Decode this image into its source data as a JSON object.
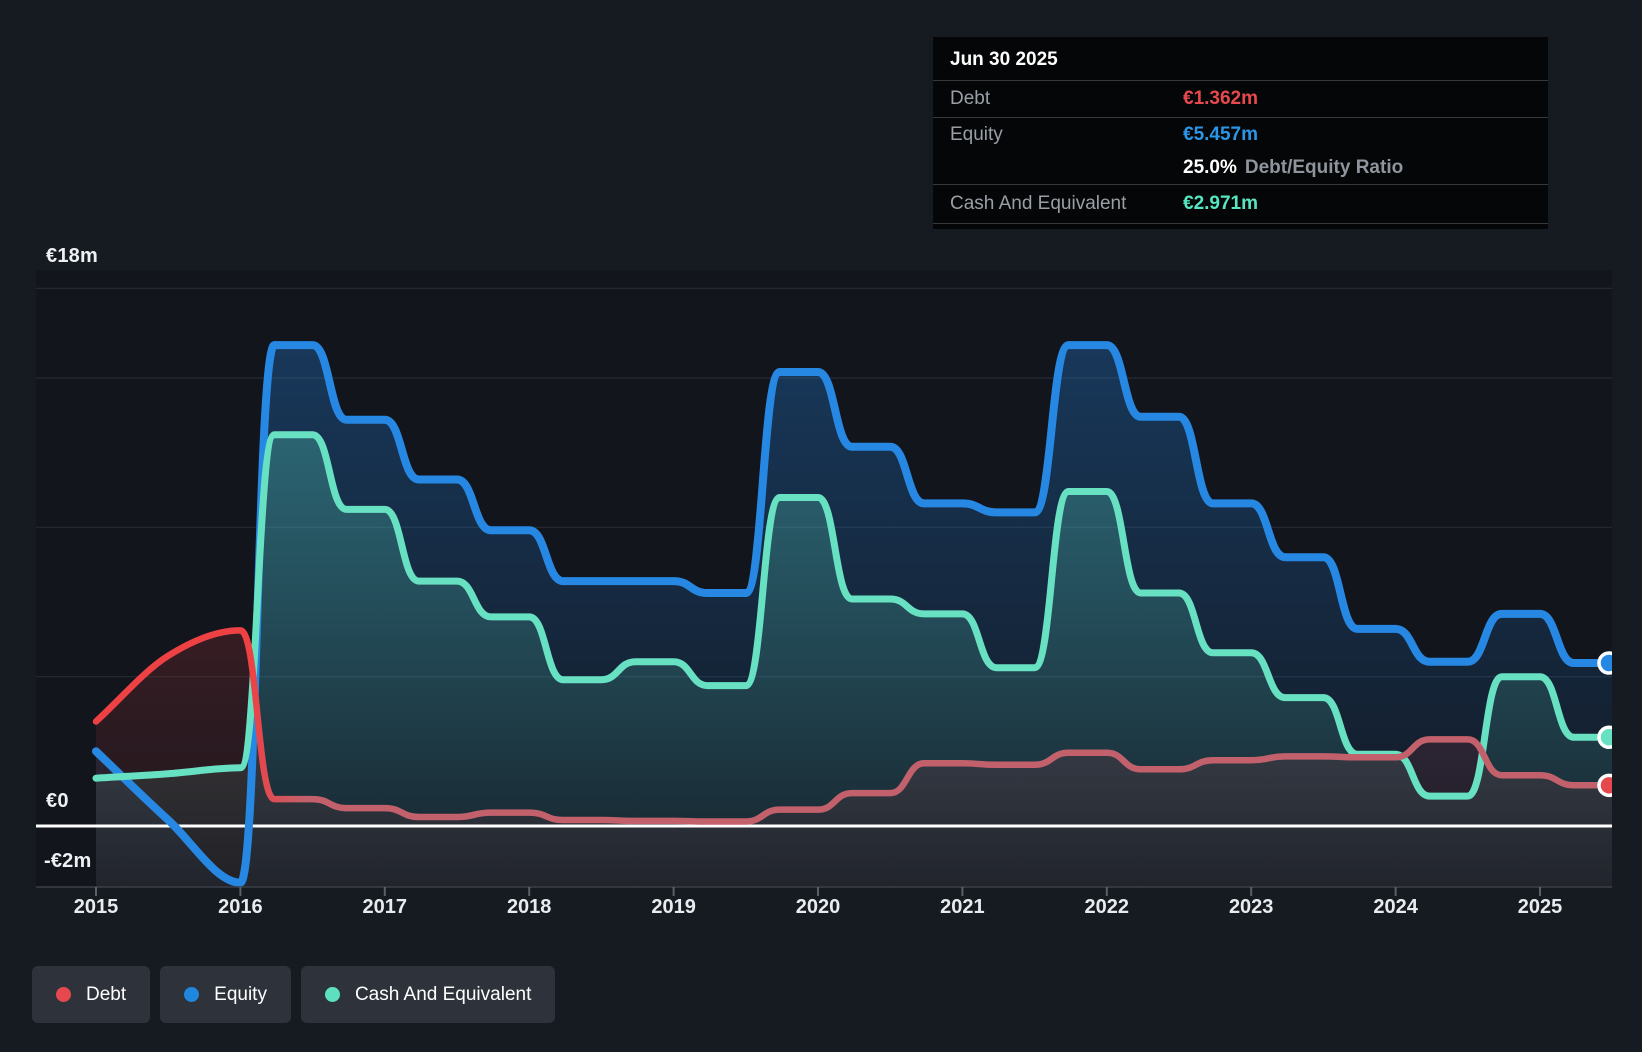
{
  "page": {
    "background": "#161a21",
    "plot_background": "#12151c"
  },
  "tooltip": {
    "date": "Jun 30 2025",
    "rows": [
      {
        "label": "Debt",
        "value": "€1.362m",
        "color": "#e8494d"
      },
      {
        "label": "Equity",
        "value": "€5.457m",
        "color": "#2b96e8"
      },
      {
        "label": "Cash And Equivalent",
        "value": "€2.971m",
        "color": "#55e6c2"
      }
    ],
    "ratio_value": "25.0%",
    "ratio_label": "Debt/Equity Ratio"
  },
  "legend": {
    "items": [
      {
        "label": "Debt",
        "color": "#e5484d"
      },
      {
        "label": "Equity",
        "color": "#2186dd"
      },
      {
        "label": "Cash And Equivalent",
        "color": "#5ee0c0"
      }
    ]
  },
  "chart_data": {
    "type": "area",
    "title": "Debt, Equity and Cash history (semi-annual)",
    "x_unit": "decimal_year",
    "x_axis": {
      "years": [
        2015,
        2016,
        2017,
        2018,
        2019,
        2020,
        2021,
        2022,
        2023,
        2024,
        2025
      ]
    },
    "y_axis": {
      "unit": "€ millions",
      "range": [
        -2,
        20
      ],
      "gridline_values": [
        18,
        15,
        10,
        5
      ],
      "zero_line": 0,
      "bottom_value": -2,
      "tick_labels": [
        "€18m",
        "€0",
        "-€2m"
      ]
    },
    "series": [
      {
        "name": "Equity",
        "color": "#2788e3",
        "fill_top": "rgba(35,125,214,0.34)",
        "fill_bottom": "rgba(35,125,214,0.03)",
        "line_width": 8,
        "end_dot_color": "#2788e3",
        "points": [
          [
            2015.0,
            2.5
          ],
          [
            2015.5,
            0.2
          ],
          [
            2016.0,
            -1.9
          ],
          [
            2016.5,
            16.1
          ],
          [
            2017.0,
            13.6
          ],
          [
            2017.5,
            11.6
          ],
          [
            2018.0,
            9.9
          ],
          [
            2018.5,
            8.2
          ],
          [
            2019.0,
            8.2
          ],
          [
            2019.5,
            7.8
          ],
          [
            2020.0,
            15.2
          ],
          [
            2020.5,
            12.7
          ],
          [
            2021.0,
            10.8
          ],
          [
            2021.5,
            10.5
          ],
          [
            2022.0,
            16.1
          ],
          [
            2022.5,
            13.7
          ],
          [
            2023.0,
            10.8
          ],
          [
            2023.5,
            9.0
          ],
          [
            2024.0,
            6.6
          ],
          [
            2024.5,
            5.5
          ],
          [
            2025.0,
            7.1
          ],
          [
            2025.5,
            5.457
          ]
        ]
      },
      {
        "name": "Cash And Equivalent",
        "color": "#68e1c3",
        "fill_top": "rgba(95,224,197,0.34)",
        "fill_bottom": "rgba(95,224,197,0.05)",
        "line_width": 7,
        "end_dot_color": "#68e1c3",
        "points": [
          [
            2015.0,
            1.6
          ],
          [
            2015.5,
            1.75
          ],
          [
            2016.0,
            1.95
          ],
          [
            2016.5,
            13.1
          ],
          [
            2017.0,
            10.6
          ],
          [
            2017.5,
            8.2
          ],
          [
            2018.0,
            7.0
          ],
          [
            2018.5,
            4.9
          ],
          [
            2019.0,
            5.5
          ],
          [
            2019.5,
            4.7
          ],
          [
            2020.0,
            11.0
          ],
          [
            2020.5,
            7.6
          ],
          [
            2021.0,
            7.1
          ],
          [
            2021.5,
            5.3
          ],
          [
            2022.0,
            11.2
          ],
          [
            2022.5,
            7.8
          ],
          [
            2023.0,
            5.8
          ],
          [
            2023.5,
            4.3
          ],
          [
            2024.0,
            2.4
          ],
          [
            2024.5,
            1.0
          ],
          [
            2025.0,
            5.0
          ],
          [
            2025.5,
            2.971
          ]
        ]
      },
      {
        "name": "Debt",
        "color": "#c2616b",
        "color_early": "#ee4144",
        "fill_top": "rgba(232,66,69,0.30)",
        "fill_bottom": "rgba(232,66,69,0.05)",
        "line_width": 6.5,
        "end_dot_color": "#e5484d",
        "points": [
          [
            2015.0,
            3.5
          ],
          [
            2015.5,
            5.7
          ],
          [
            2016.0,
            6.55
          ],
          [
            2016.5,
            0.9
          ],
          [
            2017.0,
            0.6
          ],
          [
            2017.5,
            0.3
          ],
          [
            2018.0,
            0.45
          ],
          [
            2018.5,
            0.2
          ],
          [
            2019.0,
            0.17
          ],
          [
            2019.5,
            0.15
          ],
          [
            2020.0,
            0.55
          ],
          [
            2020.5,
            1.1
          ],
          [
            2021.0,
            2.1
          ],
          [
            2021.5,
            2.05
          ],
          [
            2022.0,
            2.45
          ],
          [
            2022.5,
            1.9
          ],
          [
            2023.0,
            2.2
          ],
          [
            2023.5,
            2.33
          ],
          [
            2024.0,
            2.3
          ],
          [
            2024.5,
            2.9
          ],
          [
            2025.0,
            1.7
          ],
          [
            2025.5,
            1.362
          ]
        ]
      }
    ],
    "layout": {
      "grid": true,
      "legend_position": "bottom-left",
      "end_dots": true
    }
  }
}
